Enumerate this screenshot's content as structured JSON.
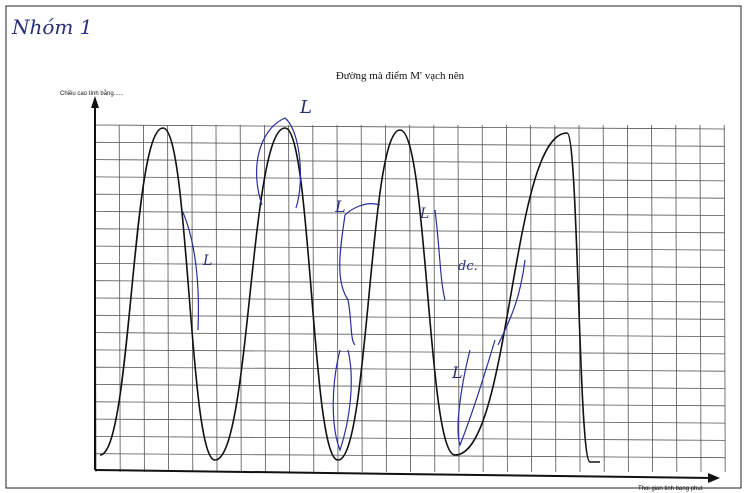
{
  "header": {
    "note": "Nhóm 1",
    "title": "Đường mà điểm M' vạch nên"
  },
  "axes": {
    "y_label": "Chiều cao tính bằng......",
    "x_label": "Thoi gian tinh bang phut"
  },
  "annotations": [
    "L",
    "L",
    "L",
    "L",
    "L",
    "dc."
  ]
}
